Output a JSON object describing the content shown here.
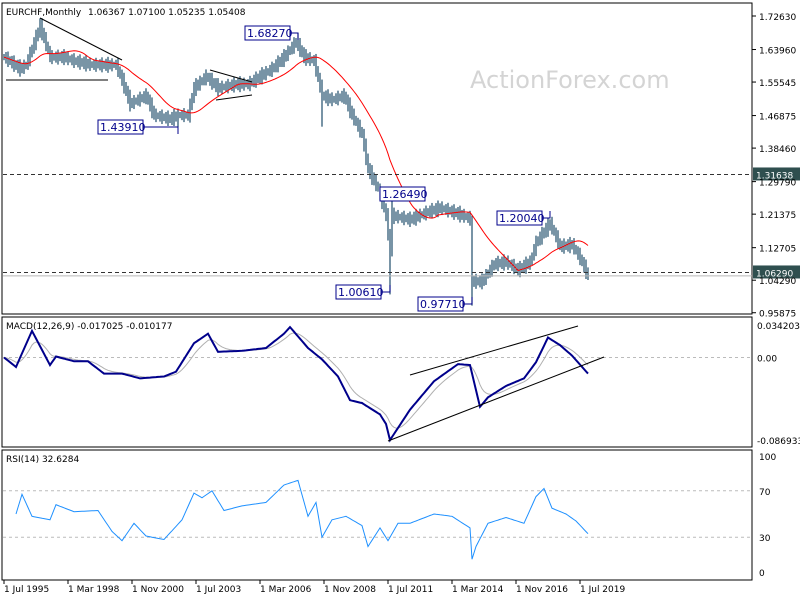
{
  "header": {
    "symbol_title": "EURCHF,Monthly",
    "ohlc": "1.06367 1.07100 1.05235 1.05408"
  },
  "watermark": "ActionForex.com",
  "macd_header": "MACD(12,26,9) -0.017025 -0.010177",
  "rsi_header": "RSI(14) 32.6284",
  "colors": {
    "bars": "#1f4e6b",
    "sma": "#ff0000",
    "macd": "#00008b",
    "signal": "#b0b0b0",
    "rsi": "#1e90ff",
    "annotation": "#00008b",
    "axis_label_bg": "#2f4f4f"
  },
  "chart_data": [
    {
      "type": "ohlc-bar",
      "title": "EURCHF,Monthly",
      "y_ticks": [
        "1.72630",
        "1.63960",
        "1.55545",
        "1.46875",
        "1.38460",
        "1.29790",
        "1.21375",
        "1.12705",
        "1.04290",
        "0.95875"
      ],
      "x_ticks": [
        "1 Jul 1995",
        "1 Mar 1998",
        "1 Nov 2000",
        "1 Jul 2003",
        "1 Mar 2006",
        "1 Nov 2008",
        "1 Jul 2011",
        "1 Mar 2014",
        "1 Nov 2016",
        "1 Jul 2019"
      ],
      "ylim": [
        0.95875,
        1.7263
      ],
      "closes": [
        [
          "1995-07",
          1.62
        ],
        [
          "1996-03",
          1.59
        ],
        [
          "1996-06",
          1.6
        ],
        [
          "1997-01",
          1.7
        ],
        [
          "1997-06",
          1.62
        ],
        [
          "1998-01",
          1.62
        ],
        [
          "1998-06",
          1.61
        ],
        [
          "1999-03",
          1.6
        ],
        [
          "1999-09",
          1.6
        ],
        [
          "2000-03",
          1.6
        ],
        [
          "2000-06",
          1.56
        ],
        [
          "2000-10",
          1.5
        ],
        [
          "2001-06",
          1.52
        ],
        [
          "2001-10",
          1.47
        ],
        [
          "2002-06",
          1.46
        ],
        [
          "2002-10",
          1.47
        ],
        [
          "2003-03",
          1.47
        ],
        [
          "2003-06",
          1.54
        ],
        [
          "2003-12",
          1.57
        ],
        [
          "2004-06",
          1.54
        ],
        [
          "2005-03",
          1.55
        ],
        [
          "2005-09",
          1.55
        ],
        [
          "2006-03",
          1.57
        ],
        [
          "2006-09",
          1.59
        ],
        [
          "2007-03",
          1.62
        ],
        [
          "2007-09",
          1.66
        ],
        [
          "2008-01",
          1.62
        ],
        [
          "2008-06",
          1.61
        ],
        [
          "2008-10",
          1.52
        ],
        [
          "2009-03",
          1.51
        ],
        [
          "2009-09",
          1.52
        ],
        [
          "2010-01",
          1.47
        ],
        [
          "2010-06",
          1.42
        ],
        [
          "2010-09",
          1.33
        ],
        [
          "2011-02",
          1.28
        ],
        [
          "2011-06",
          1.21
        ],
        [
          "2011-08",
          1.12
        ],
        [
          "2011-09",
          1.21
        ],
        [
          "2012-06",
          1.2
        ],
        [
          "2013-03",
          1.22
        ],
        [
          "2013-09",
          1.23
        ],
        [
          "2014-06",
          1.215
        ],
        [
          "2014-12",
          1.202
        ],
        [
          "2015-01",
          1.04
        ],
        [
          "2015-06",
          1.04
        ],
        [
          "2015-12",
          1.085
        ],
        [
          "2016-06",
          1.09
        ],
        [
          "2016-12",
          1.07
        ],
        [
          "2017-06",
          1.09
        ],
        [
          "2017-09",
          1.14
        ],
        [
          "2018-04",
          1.19
        ],
        [
          "2018-09",
          1.13
        ],
        [
          "2019-03",
          1.135
        ],
        [
          "2019-07",
          1.1
        ],
        [
          "2019-11",
          1.054
        ]
      ],
      "extremes": [
        [
          "1997-01",
          "high",
          1.72
        ],
        [
          "2002-10",
          "low",
          1.4391
        ],
        [
          "2007-10",
          "high",
          1.6827
        ],
        [
          "2008-10",
          "low",
          1.44
        ],
        [
          "2011-08",
          "low",
          1.0061
        ],
        [
          "2011-09",
          "high",
          1.2649
        ],
        [
          "2015-01",
          "low",
          0.9771
        ],
        [
          "2015-01",
          "high",
          1.21
        ],
        [
          "2018-04",
          "high",
          1.2004
        ]
      ],
      "annotations": [
        {
          "date": "2007-10",
          "text": "1.68270"
        },
        {
          "date": "2002-10",
          "text": "1.43910"
        },
        {
          "date": "2011-09",
          "text": "1.26490"
        },
        {
          "date": "2011-08",
          "text": "1.00610"
        },
        {
          "date": "2015-01",
          "text": "0.97710"
        },
        {
          "date": "2018-04",
          "text": "1.20040"
        }
      ],
      "levels": [
        {
          "value": 1.31638,
          "label": "1.31638",
          "style": "dashed"
        },
        {
          "value": 1.0629,
          "label": "1.06290",
          "style": "dashed"
        },
        {
          "value": 1.05408,
          "style": "solid"
        }
      ],
      "moving_average": {
        "color": "#ff0000"
      }
    },
    {
      "type": "line",
      "title": "MACD(12,26,9) -0.017025 -0.010177",
      "y_ticks": [
        "0.034203",
        "0.00",
        "-0.086933"
      ],
      "ylim": [
        -0.086933,
        0.034203
      ],
      "macd": [
        [
          "1995-07",
          0.0
        ],
        [
          "1996-01",
          -0.01
        ],
        [
          "1996-09",
          0.028
        ],
        [
          "1997-06",
          -0.008
        ],
        [
          "1997-09",
          0.001
        ],
        [
          "1998-06",
          -0.004
        ],
        [
          "1999-01",
          -0.004
        ],
        [
          "1999-09",
          -0.017
        ],
        [
          "2000-06",
          -0.017
        ],
        [
          "2001-03",
          -0.022
        ],
        [
          "2002-03",
          -0.02
        ],
        [
          "2002-09",
          -0.015
        ],
        [
          "2003-06",
          0.015
        ],
        [
          "2004-01",
          0.025
        ],
        [
          "2004-06",
          0.006
        ],
        [
          "2005-06",
          0.007
        ],
        [
          "2006-06",
          0.01
        ],
        [
          "2007-03",
          0.025
        ],
        [
          "2007-06",
          0.032
        ],
        [
          "2008-03",
          0.01
        ],
        [
          "2008-10",
          -0.002
        ],
        [
          "2009-06",
          -0.02
        ],
        [
          "2009-12",
          -0.045
        ],
        [
          "2010-06",
          -0.048
        ],
        [
          "2011-03",
          -0.06
        ],
        [
          "2011-06",
          -0.07
        ],
        [
          "2011-08",
          -0.087
        ],
        [
          "2012-06",
          -0.055
        ],
        [
          "2013-06",
          -0.025
        ],
        [
          "2014-06",
          -0.007
        ],
        [
          "2014-12",
          -0.008
        ],
        [
          "2015-05",
          -0.052
        ],
        [
          "2015-09",
          -0.042
        ],
        [
          "2016-06",
          -0.03
        ],
        [
          "2017-03",
          -0.022
        ],
        [
          "2017-09",
          -0.005
        ],
        [
          "2018-03",
          0.021
        ],
        [
          "2018-09",
          0.013
        ],
        [
          "2019-03",
          0.002
        ],
        [
          "2019-11",
          -0.017
        ]
      ]
    },
    {
      "type": "line",
      "title": "RSI(14) 32.6284",
      "y_ticks": [
        "100",
        "70",
        "30",
        "0"
      ],
      "ylim": [
        0,
        100
      ],
      "levels": [
        70,
        30
      ],
      "rsi": [
        [
          "1996-01",
          50
        ],
        [
          "1996-04",
          67
        ],
        [
          "1996-09",
          48
        ],
        [
          "1997-06",
          45
        ],
        [
          "1997-09",
          58
        ],
        [
          "1998-06",
          52
        ],
        [
          "1999-06",
          53
        ],
        [
          "2000-01",
          35
        ],
        [
          "2000-06",
          27
        ],
        [
          "2000-12",
          42
        ],
        [
          "2001-06",
          31
        ],
        [
          "2002-03",
          28
        ],
        [
          "2002-12",
          45
        ],
        [
          "2003-06",
          68
        ],
        [
          "2003-10",
          64
        ],
        [
          "2004-03",
          70
        ],
        [
          "2004-09",
          53
        ],
        [
          "2005-06",
          57
        ],
        [
          "2006-06",
          60
        ],
        [
          "2007-03",
          75
        ],
        [
          "2007-10",
          79
        ],
        [
          "2008-03",
          48
        ],
        [
          "2008-07",
          60
        ],
        [
          "2008-10",
          30
        ],
        [
          "2009-03",
          45
        ],
        [
          "2009-10",
          48
        ],
        [
          "2010-06",
          40
        ],
        [
          "2010-09",
          22
        ],
        [
          "2011-03",
          38
        ],
        [
          "2011-07",
          27
        ],
        [
          "2011-12",
          42
        ],
        [
          "2012-06",
          42
        ],
        [
          "2013-06",
          50
        ],
        [
          "2014-03",
          48
        ],
        [
          "2014-12",
          38
        ],
        [
          "2015-01",
          11
        ],
        [
          "2015-03",
          22
        ],
        [
          "2015-09",
          42
        ],
        [
          "2016-06",
          47
        ],
        [
          "2017-03",
          42
        ],
        [
          "2017-09",
          65
        ],
        [
          "2018-01",
          72
        ],
        [
          "2018-05",
          55
        ],
        [
          "2018-12",
          50
        ],
        [
          "2019-05",
          44
        ],
        [
          "2019-11",
          33
        ]
      ]
    }
  ]
}
